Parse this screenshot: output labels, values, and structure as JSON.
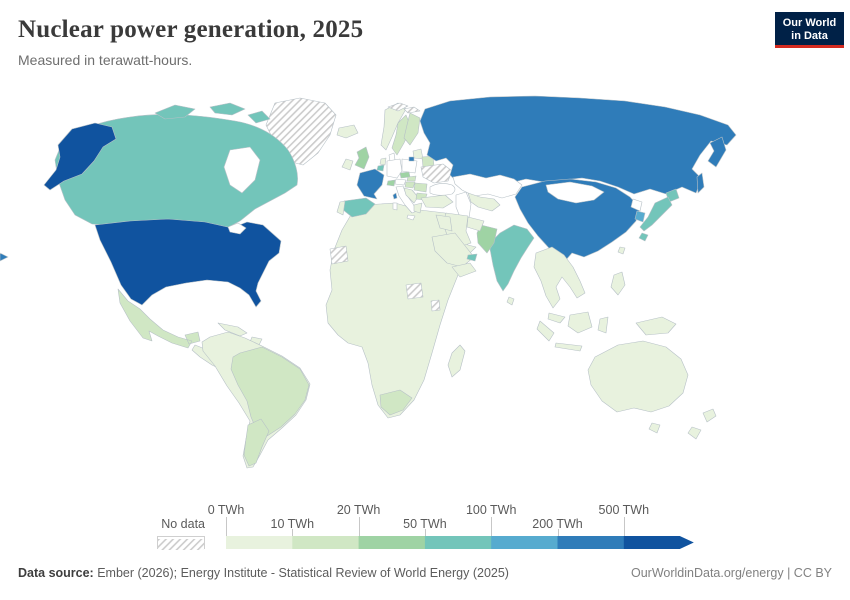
{
  "header": {
    "title": "Nuclear power generation, 2025",
    "subtitle": "Measured in terawatt-hours."
  },
  "logo": {
    "line1": "Our World",
    "line2": "in Data"
  },
  "legend": {
    "no_data_label": "No data",
    "tick_labels": [
      "0 TWh",
      "10 TWh",
      "20 TWh",
      "50 TWh",
      "100 TWh",
      "200 TWh",
      "500 TWh"
    ]
  },
  "colors": {
    "bins": [
      "#e8f2de",
      "#d0e7c4",
      "#9fd3a4",
      "#73c5ba",
      "#57abcf",
      "#2f7cb9",
      "#10539f"
    ],
    "zero_fill": "#ffffff",
    "border": "#b7c1c7",
    "hatch_line": "#cccccc",
    "logo_bg": "#002147",
    "logo_accent": "#d42b20"
  },
  "map": {
    "fills": {
      "usa": 6,
      "alaska": 6,
      "canada": 3,
      "arctic-islands": 3,
      "greenland": "nd",
      "mexico": 1,
      "central-america": 0,
      "cuba": 0,
      "hispaniola": 0,
      "south-america": 0,
      "brazil": 1,
      "argentina": 1,
      "africa": 0,
      "south-africa": 1,
      "madagascar": 0,
      "western-sahara": "nd",
      "south-sudan": "nd",
      "burundi": "nd",
      "iceland": 0,
      "uk": 2,
      "ireland": 0,
      "norway": 0,
      "sweden": 1,
      "finland": 1,
      "denmark": "zero",
      "germany": "zero",
      "netherlands": 0,
      "belgium": 3,
      "poland": "zero",
      "czechia": 2,
      "slovakia": 1,
      "austria": "zero",
      "hungary": 1,
      "switzerland": 2,
      "france": 5,
      "corsica": 5,
      "spain": 3,
      "portugal": 0,
      "italy": "zero",
      "sicily": "zero",
      "sardinia": "zero",
      "balkans": 0,
      "greece": 0,
      "romania": 1,
      "bulgaria": 1,
      "baltics": 0,
      "kaliningrad": 5,
      "belarus": 1,
      "ukraine": "nd",
      "turkey": 0,
      "russia": 5,
      "kamchatka": 5,
      "sakhalin": 5,
      "svalbard": "nd",
      "kazakhstan": "zero",
      "central-asia": 0,
      "china": 5,
      "mongolia": "zero",
      "india": 3,
      "sri-lanka": 0,
      "pakistan": 2,
      "afghanistan": 0,
      "iran": 0,
      "iraq": 0,
      "saudi-arabia": 0,
      "uae": 3,
      "yemen-oman": 0,
      "se-asia": 0,
      "malaysia": 0,
      "sumatra": 0,
      "borneo": 0,
      "java": 0,
      "sulawesi": 0,
      "new-guinea": 0,
      "philippines": 0,
      "taiwan": 0,
      "japan-hokkaido": 3,
      "japan-honshu": 3,
      "japan-kyushu": 3,
      "south-korea": 4,
      "north-korea": "zero",
      "australia": 0,
      "tasmania": 0,
      "new-zealand-north": 0,
      "new-zealand-south": 0,
      "map-wrap-fragment": 5
    }
  },
  "chart_data": {
    "type": "choropleth-map",
    "title": "Nuclear power generation, 2025",
    "unit": "terawatt-hours",
    "legend_position": "bottom",
    "legend_bins": [
      {
        "range": "0-10 TWh",
        "color": "#e8f2de"
      },
      {
        "range": "10-20 TWh",
        "color": "#d0e7c4"
      },
      {
        "range": "20-50 TWh",
        "color": "#9fd3a4"
      },
      {
        "range": "50-100 TWh",
        "color": "#73c5ba"
      },
      {
        "range": "100-200 TWh",
        "color": "#57abcf"
      },
      {
        "range": "200-500 TWh",
        "color": "#2f7cb9"
      },
      {
        "range": "500+ TWh",
        "color": "#10539f"
      }
    ],
    "countries": [
      {
        "name": "United States",
        "bin": "500+ TWh"
      },
      {
        "name": "France",
        "bin": "200-500 TWh"
      },
      {
        "name": "Russia",
        "bin": "200-500 TWh"
      },
      {
        "name": "China",
        "bin": "200-500 TWh"
      },
      {
        "name": "South Korea",
        "bin": "100-200 TWh"
      },
      {
        "name": "Canada",
        "bin": "50-100 TWh"
      },
      {
        "name": "Japan",
        "bin": "50-100 TWh"
      },
      {
        "name": "Spain",
        "bin": "50-100 TWh"
      },
      {
        "name": "India",
        "bin": "50-100 TWh"
      },
      {
        "name": "Belgium",
        "bin": "50-100 TWh"
      },
      {
        "name": "United Arab Emirates",
        "bin": "50-100 TWh"
      },
      {
        "name": "United Kingdom",
        "bin": "20-50 TWh"
      },
      {
        "name": "Czechia",
        "bin": "20-50 TWh"
      },
      {
        "name": "Switzerland",
        "bin": "20-50 TWh"
      },
      {
        "name": "Pakistan",
        "bin": "20-50 TWh"
      },
      {
        "name": "Sweden",
        "bin": "10-20 TWh"
      },
      {
        "name": "Finland",
        "bin": "10-20 TWh"
      },
      {
        "name": "Slovakia",
        "bin": "10-20 TWh"
      },
      {
        "name": "Hungary",
        "bin": "10-20 TWh"
      },
      {
        "name": "Romania",
        "bin": "10-20 TWh"
      },
      {
        "name": "Bulgaria",
        "bin": "10-20 TWh"
      },
      {
        "name": "Belarus",
        "bin": "10-20 TWh"
      },
      {
        "name": "Mexico",
        "bin": "10-20 TWh"
      },
      {
        "name": "Brazil",
        "bin": "10-20 TWh"
      },
      {
        "name": "Argentina",
        "bin": "10-20 TWh"
      },
      {
        "name": "South Africa",
        "bin": "10-20 TWh"
      },
      {
        "name": "Netherlands",
        "bin": "0-10 TWh"
      },
      {
        "name": "Iran",
        "bin": "0-10 TWh"
      },
      {
        "name": "Australia",
        "bin": "0-10 TWh"
      },
      {
        "name": "Most of Africa, South America, Southeast Asia and Oceania",
        "bin": "0-10 TWh"
      }
    ],
    "rendered_white_zero": [
      "Germany",
      "Poland",
      "Italy",
      "Austria",
      "Denmark",
      "Kazakhstan",
      "Mongolia",
      "North Korea"
    ],
    "no_data": [
      "Greenland",
      "Ukraine",
      "Western Sahara",
      "South Sudan",
      "Svalbard"
    ]
  },
  "footer": {
    "source_label": "Data source:",
    "source_text": " Ember (2026); Energy Institute - Statistical Review of World Energy (2025)",
    "right_text": "OurWorldinData.org/energy | CC BY"
  }
}
